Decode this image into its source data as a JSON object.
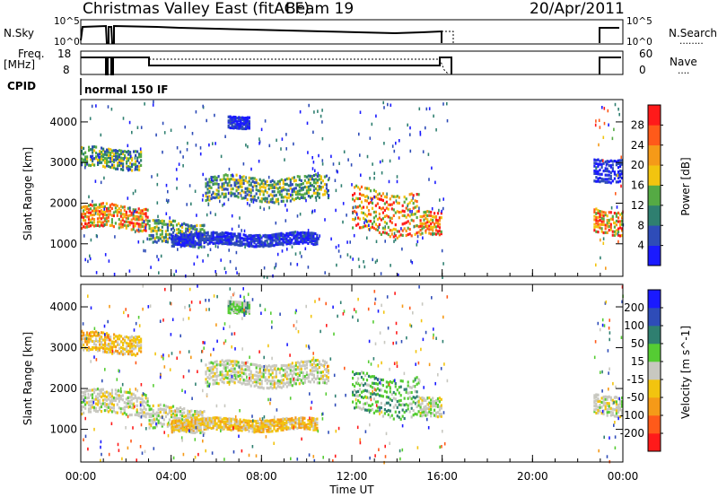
{
  "header": {
    "radar": "Christmas Valley East (fitACF)",
    "beam": "Beam 19",
    "date": "20/Apr/2011"
  },
  "panels": {
    "nsky_label": "N.Sky",
    "nsearch_label": "N.Search",
    "nsearch_marker": "........",
    "scale_hi": "10^5",
    "scale_lo": "10^0",
    "freq_label_1": "Freq.",
    "freq_label_2": "[MHz]",
    "freq_ticks": [
      "18",
      "8"
    ],
    "nave_label": "Nave",
    "nave_marker": "....",
    "nave_ticks": [
      "60",
      "0"
    ],
    "cpid_label": "CPID",
    "cpid_value": "normal 150 IF"
  },
  "chart_data": [
    {
      "type": "heatmap",
      "name": "power",
      "ylabel": "Slant Range [km]",
      "ylim": [
        200,
        4550
      ],
      "yticks": [
        "1000",
        "2000",
        "3000",
        "4000"
      ],
      "colorbar": {
        "label": "Power [dB]",
        "ticks": [
          "4",
          "8",
          "12",
          "16",
          "20",
          "24",
          "28"
        ],
        "colors": [
          "#1a1aff",
          "#2e4cb8",
          "#2f7f70",
          "#55aa44",
          "#f2c40f",
          "#f59a18",
          "#ff5a1a",
          "#ff1a1a"
        ]
      },
      "regions": [
        {
          "t0": 0.0,
          "t1": 3.0,
          "r0": 1400,
          "r1": 2000,
          "level": "high"
        },
        {
          "t0": 0.0,
          "t1": 2.7,
          "r0": 2900,
          "r1": 3400,
          "level": "mid"
        },
        {
          "t0": 3.0,
          "t1": 5.5,
          "r0": 1000,
          "r1": 1600,
          "level": "mid"
        },
        {
          "t0": 5.5,
          "t1": 11.0,
          "r0": 2100,
          "r1": 2700,
          "level": "mid"
        },
        {
          "t0": 4.0,
          "t1": 10.5,
          "r0": 1000,
          "r1": 1300,
          "level": "low"
        },
        {
          "t0": 6.5,
          "t1": 7.5,
          "r0": 3900,
          "r1": 4200,
          "level": "low"
        },
        {
          "t0": 12.0,
          "t1": 15.0,
          "r0": 1300,
          "r1": 2400,
          "level": "high"
        },
        {
          "t0": 15.0,
          "t1": 16.0,
          "r0": 1200,
          "r1": 1800,
          "level": "high"
        },
        {
          "t0": 22.7,
          "t1": 24.0,
          "r0": 1300,
          "r1": 1900,
          "level": "high"
        },
        {
          "t0": 22.7,
          "t1": 24.0,
          "r0": 2600,
          "r1": 3200,
          "level": "low"
        }
      ]
    },
    {
      "type": "heatmap",
      "name": "velocity",
      "ylabel": "Slant Range [km]",
      "ylim": [
        200,
        4550
      ],
      "yticks": [
        "1000",
        "2000",
        "3000",
        "4000"
      ],
      "colorbar": {
        "label": "Velocity [m s^-1]",
        "ticks": [
          "200",
          "100",
          "50",
          "15",
          "-15",
          "-50",
          "-100",
          "-200"
        ],
        "colors": [
          "#1a1aff",
          "#2e4cb8",
          "#2f7f70",
          "#55cc33",
          "#c8c8c0",
          "#f2c40f",
          "#f59a18",
          "#ff5a1a",
          "#ff1a1a"
        ]
      },
      "regions": [
        {
          "t0": 0.0,
          "t1": 3.0,
          "r0": 1400,
          "r1": 2000,
          "level": "gray"
        },
        {
          "t0": 0.0,
          "t1": 2.7,
          "r0": 2900,
          "r1": 3400,
          "level": "yellow"
        },
        {
          "t0": 3.0,
          "t1": 5.5,
          "r0": 1000,
          "r1": 1600,
          "level": "gray"
        },
        {
          "t0": 5.5,
          "t1": 11.0,
          "r0": 2100,
          "r1": 2700,
          "level": "gray"
        },
        {
          "t0": 4.0,
          "t1": 10.5,
          "r0": 1000,
          "r1": 1300,
          "level": "yellow"
        },
        {
          "t0": 6.5,
          "t1": 7.5,
          "r0": 3900,
          "r1": 4200,
          "level": "green"
        },
        {
          "t0": 12.0,
          "t1": 15.0,
          "r0": 1400,
          "r1": 2400,
          "level": "green"
        },
        {
          "t0": 15.0,
          "t1": 16.0,
          "r0": 1300,
          "r1": 1800,
          "level": "gray"
        },
        {
          "t0": 22.7,
          "t1": 24.0,
          "r0": 1400,
          "r1": 1900,
          "level": "gray"
        }
      ]
    }
  ],
  "xaxis": {
    "label": "Time UT",
    "xlim": [
      0,
      24
    ],
    "ticks": [
      "00:00",
      "04:00",
      "08:00",
      "12:00",
      "16:00",
      "20:00",
      "00:00"
    ]
  }
}
